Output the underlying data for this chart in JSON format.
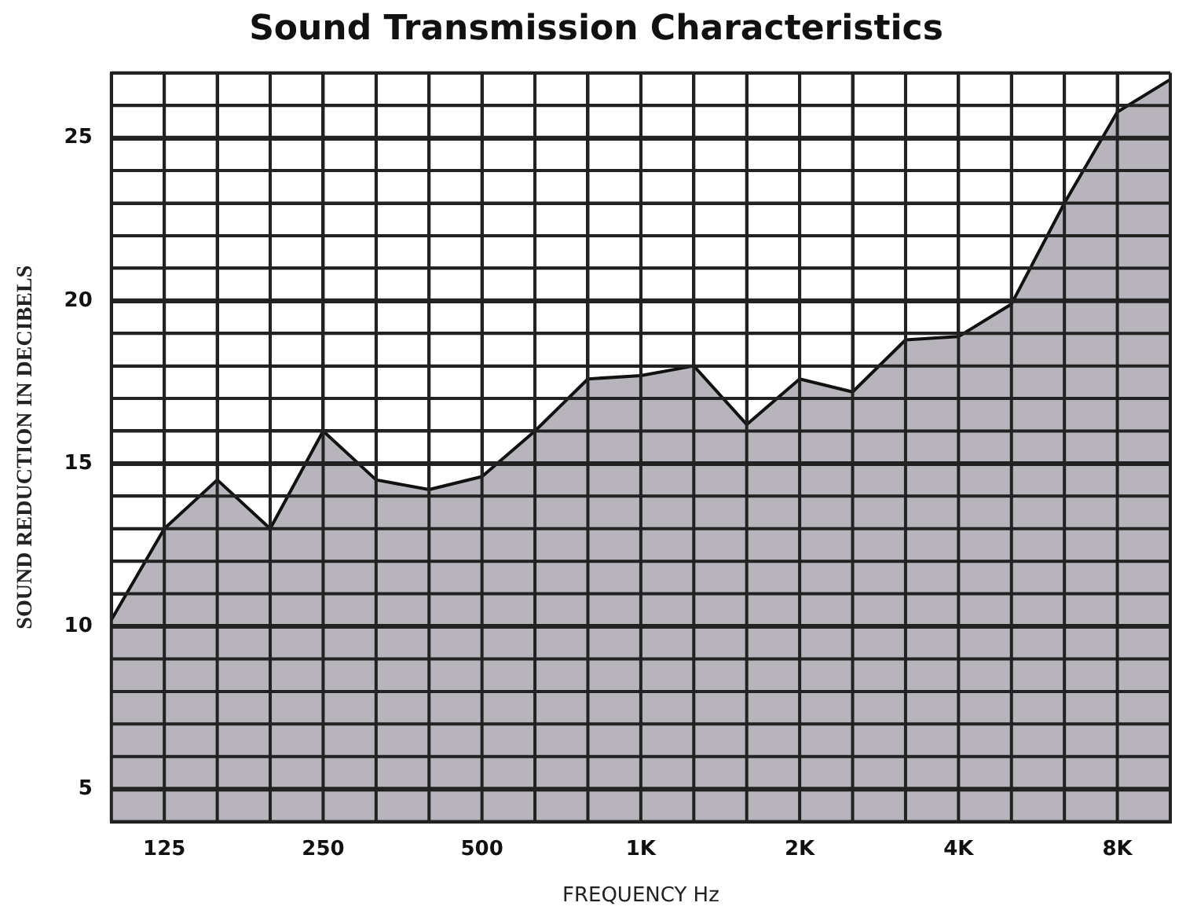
{
  "chart_data": {
    "type": "area",
    "title": "Sound Transmission Characteristics",
    "xlabel": "FREQUENCY Hz",
    "ylabel": "SOUND REDUCTION IN DECIBELS",
    "categories": [
      null,
      "125",
      null,
      null,
      "250",
      null,
      null,
      "500",
      null,
      null,
      "1K",
      null,
      null,
      "2K",
      null,
      null,
      "4K",
      null,
      null,
      "8K",
      null
    ],
    "series": [
      {
        "color": "#b7b4bb",
        "values": [
          10.2,
          13,
          14.5,
          13,
          16,
          14.5,
          14.2,
          14.6,
          16,
          17.6,
          17.7,
          18,
          16.2,
          17.6,
          17.2,
          18.8,
          18.9,
          19.9,
          23,
          25.8,
          26.8
        ]
      }
    ],
    "ylim": [
      4,
      27
    ],
    "yticks": [
      {
        "value": 4,
        "label": null
      },
      5,
      {
        "value": 6,
        "label": null
      },
      {
        "value": 7,
        "label": null
      },
      {
        "value": 8,
        "label": null
      },
      {
        "value": 9,
        "label": null
      },
      10,
      {
        "value": 11,
        "label": null
      },
      {
        "value": 12,
        "label": null
      },
      {
        "value": 13,
        "label": null
      },
      {
        "value": 14,
        "label": null
      },
      15,
      {
        "value": 16,
        "label": null
      },
      {
        "value": 17,
        "label": null
      },
      {
        "value": 18,
        "label": null
      },
      {
        "value": 19,
        "label": null
      },
      20,
      {
        "value": 21,
        "label": null
      },
      {
        "value": 22,
        "label": null
      },
      {
        "value": 23,
        "label": null
      },
      {
        "value": 24,
        "label": null
      },
      25,
      {
        "value": 26,
        "label": null
      },
      {
        "value": 27,
        "label": null
      }
    ],
    "grid": true,
    "legend": false,
    "marker": "none"
  }
}
